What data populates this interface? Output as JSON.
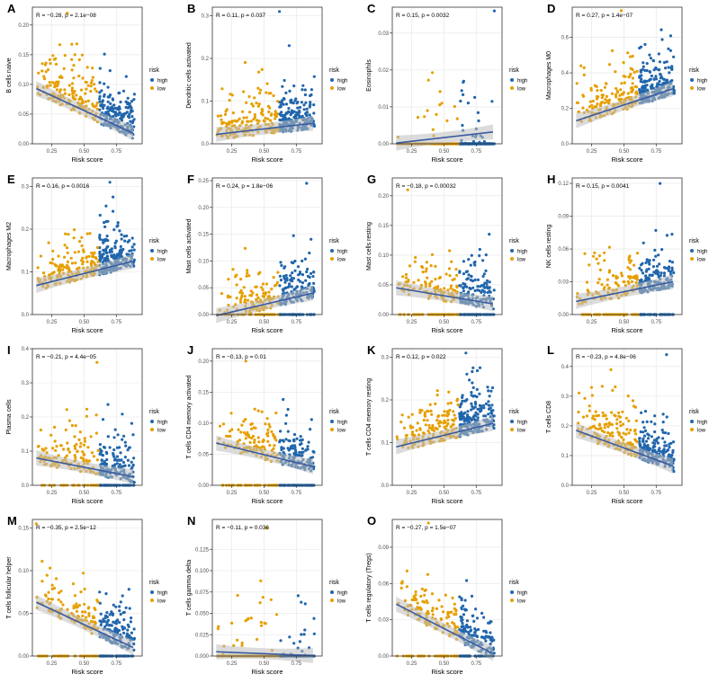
{
  "figure": {
    "x_axis_label": "Risk score",
    "legend_title": "risk",
    "legend_levels": [
      "high",
      "low"
    ],
    "colors": {
      "high": "#2166ac",
      "low": "#e69f00",
      "fit_line": "#3a5ba0",
      "ci_band": "#bdbdbd",
      "grid": "#ebebeb",
      "panel_border": "#333333"
    }
  },
  "chart_data": [
    {
      "type": "scatter",
      "panel": "A",
      "ylabel": "B cells naive",
      "annotation": "R = −0.28, p = 2.1e−08",
      "r": -0.28,
      "xlim": [
        0.1,
        0.95
      ],
      "ylim": [
        0,
        0.23
      ],
      "xticks": [
        0.25,
        0.5,
        0.75
      ],
      "xtick_labels": [
        "0.25",
        "0.50",
        "0.75"
      ],
      "yticks": [
        0.0,
        0.05,
        0.1,
        0.15,
        0.2
      ],
      "ytick_labels": [
        "0.00",
        "0.05",
        "0.10",
        "0.15",
        "0.20"
      ],
      "fit": {
        "x": [
          0.13,
          0.88
        ],
        "y": [
          0.093,
          0.018
        ]
      },
      "n_points": 360,
      "max_point": {
        "x": 0.37,
        "y": 0.22
      }
    },
    {
      "type": "scatter",
      "panel": "B",
      "ylabel": "Dendritic cells activated",
      "annotation": "R = 0.11, p = 0.037",
      "r": 0.11,
      "xlim": [
        0.1,
        0.95
      ],
      "ylim": [
        0,
        0.32
      ],
      "xticks": [
        0.25,
        0.5,
        0.75
      ],
      "xtick_labels": [
        "0.25",
        "0.50",
        "0.75"
      ],
      "yticks": [
        0.0,
        0.1,
        0.2,
        0.3
      ],
      "ytick_labels": [
        "0.0",
        "0.1",
        "0.2",
        "0.3"
      ],
      "fit": {
        "x": [
          0.13,
          0.88
        ],
        "y": [
          0.022,
          0.048
        ]
      },
      "n_points": 360,
      "max_point": {
        "x": 0.62,
        "y": 0.31
      }
    },
    {
      "type": "scatter",
      "panel": "C",
      "ylabel": "Eosinophils",
      "annotation": "R = 0.15, p = 0.0032",
      "r": 0.15,
      "xlim": [
        0.1,
        0.95
      ],
      "ylim": [
        0,
        0.037
      ],
      "xticks": [
        0.25,
        0.5,
        0.75
      ],
      "xtick_labels": [
        "0.25",
        "0.50",
        "0.75"
      ],
      "yticks": [
        0.0,
        0.01,
        0.02,
        0.03
      ],
      "ytick_labels": [
        "0.00",
        "0.01",
        "0.02",
        "0.03"
      ],
      "fit": {
        "x": [
          0.13,
          0.88
        ],
        "y": [
          0.0002,
          0.0032
        ]
      },
      "n_points": 360,
      "max_point": {
        "x": 0.89,
        "y": 0.036
      }
    },
    {
      "type": "scatter",
      "panel": "D",
      "ylabel": "Macrophages M0",
      "annotation": "R = 0.27, p = 1.4e−07",
      "r": 0.27,
      "xlim": [
        0.1,
        0.95
      ],
      "ylim": [
        0,
        0.77
      ],
      "xticks": [
        0.25,
        0.5,
        0.75
      ],
      "xtick_labels": [
        "0.25",
        "0.50",
        "0.75"
      ],
      "yticks": [
        0.0,
        0.2,
        0.4,
        0.6
      ],
      "ytick_labels": [
        "0.0",
        "0.2",
        "0.4",
        "0.6"
      ],
      "fit": {
        "x": [
          0.13,
          0.88
        ],
        "y": [
          0.13,
          0.31
        ]
      },
      "n_points": 360,
      "max_point": {
        "x": 0.48,
        "y": 0.75
      }
    },
    {
      "type": "scatter",
      "panel": "E",
      "ylabel": "Macrophages M2",
      "annotation": "R = 0.16, p = 0.0016",
      "r": 0.16,
      "xlim": [
        0.1,
        0.95
      ],
      "ylim": [
        0,
        0.32
      ],
      "xticks": [
        0.25,
        0.5,
        0.75
      ],
      "xtick_labels": [
        "0.25",
        "0.50",
        "0.75"
      ],
      "yticks": [
        0.0,
        0.1,
        0.2,
        0.3
      ],
      "ytick_labels": [
        "0.0",
        "0.1",
        "0.2",
        "0.3"
      ],
      "fit": {
        "x": [
          0.13,
          0.88
        ],
        "y": [
          0.068,
          0.125
        ]
      },
      "n_points": 360,
      "max_point": {
        "x": 0.7,
        "y": 0.31
      }
    },
    {
      "type": "scatter",
      "panel": "F",
      "ylabel": "Mast cells activated",
      "annotation": "R = 0.24, p = 1.8e−06",
      "r": 0.24,
      "xlim": [
        0.1,
        0.95
      ],
      "ylim": [
        0,
        0.255
      ],
      "xticks": [
        0.25,
        0.5,
        0.75
      ],
      "xtick_labels": [
        "0.25",
        "0.50",
        "0.75"
      ],
      "yticks": [
        0.0,
        0.05,
        0.1,
        0.15,
        0.2,
        0.25
      ],
      "ytick_labels": [
        "0.00",
        "0.05",
        "0.10",
        "0.15",
        "0.20",
        "0.25"
      ],
      "fit": {
        "x": [
          0.13,
          0.88
        ],
        "y": [
          -0.002,
          0.04
        ]
      },
      "n_points": 360,
      "max_point": {
        "x": 0.83,
        "y": 0.245
      }
    },
    {
      "type": "scatter",
      "panel": "G",
      "ylabel": "Mast cells resting",
      "annotation": "R = −0.18, p = 0.00032",
      "r": -0.18,
      "xlim": [
        0.1,
        0.95
      ],
      "ylim": [
        0,
        0.23
      ],
      "xticks": [
        0.25,
        0.5,
        0.75
      ],
      "xtick_labels": [
        "0.25",
        "0.50",
        "0.75"
      ],
      "yticks": [
        0.0,
        0.05,
        0.1,
        0.15,
        0.2
      ],
      "ytick_labels": [
        "0.00",
        "0.05",
        "0.10",
        "0.15",
        "0.20"
      ],
      "fit": {
        "x": [
          0.13,
          0.88
        ],
        "y": [
          0.045,
          0.018
        ]
      },
      "n_points": 360,
      "max_point": {
        "x": 0.22,
        "y": 0.21
      }
    },
    {
      "type": "scatter",
      "panel": "H",
      "ylabel": "NK cells resting",
      "annotation": "R = 0.15, p = 0.0041",
      "r": 0.15,
      "xlim": [
        0.1,
        0.95
      ],
      "ylim": [
        0,
        0.125
      ],
      "xticks": [
        0.25,
        0.5,
        0.75
      ],
      "xtick_labels": [
        "0.25",
        "0.50",
        "0.75"
      ],
      "yticks": [
        0.0,
        0.03,
        0.06,
        0.09,
        0.12
      ],
      "ytick_labels": [
        "0.00",
        "0.03",
        "0.06",
        "0.09",
        "0.12"
      ],
      "fit": {
        "x": [
          0.13,
          0.88
        ],
        "y": [
          0.012,
          0.03
        ]
      },
      "n_points": 360,
      "max_point": {
        "x": 0.78,
        "y": 0.12
      }
    },
    {
      "type": "scatter",
      "panel": "I",
      "ylabel": "Plasma cells",
      "annotation": "R = −0.21, p = 4.4e−05",
      "r": -0.21,
      "xlim": [
        0.1,
        0.95
      ],
      "ylim": [
        0,
        0.4
      ],
      "xticks": [
        0.25,
        0.5,
        0.75
      ],
      "xtick_labels": [
        "0.25",
        "0.50",
        "0.75"
      ],
      "yticks": [
        0.0,
        0.1,
        0.2,
        0.3,
        0.4
      ],
      "ytick_labels": [
        "0.0",
        "0.1",
        "0.2",
        "0.3",
        "0.4"
      ],
      "fit": {
        "x": [
          0.13,
          0.88
        ],
        "y": [
          0.08,
          0.025
        ]
      },
      "n_points": 360,
      "max_point": {
        "x": 0.6,
        "y": 0.36
      }
    },
    {
      "type": "scatter",
      "panel": "J",
      "ylabel": "T cells CD4 memory activated",
      "annotation": "R = −0.13, p = 0.01",
      "r": -0.13,
      "xlim": [
        0.1,
        0.95
      ],
      "ylim": [
        0,
        0.22
      ],
      "xticks": [
        0.25,
        0.5,
        0.75
      ],
      "xtick_labels": [
        "0.25",
        "0.50",
        "0.75"
      ],
      "yticks": [
        0.0,
        0.05,
        0.1,
        0.15,
        0.2
      ],
      "ytick_labels": [
        "0.00",
        "0.05",
        "0.10",
        "0.15",
        "0.20"
      ],
      "fit": {
        "x": [
          0.13,
          0.88
        ],
        "y": [
          0.068,
          0.03
        ]
      },
      "n_points": 360,
      "max_point": {
        "x": 0.36,
        "y": 0.2
      }
    },
    {
      "type": "scatter",
      "panel": "K",
      "ylabel": "T cells CD4 memory resting",
      "annotation": "R = 0.12, p = 0.022",
      "r": 0.12,
      "xlim": [
        0.1,
        0.95
      ],
      "ylim": [
        0,
        0.32
      ],
      "xticks": [
        0.25,
        0.5,
        0.75
      ],
      "xtick_labels": [
        "0.25",
        "0.50",
        "0.75"
      ],
      "yticks": [
        0.0,
        0.1,
        0.2,
        0.3
      ],
      "ytick_labels": [
        "0.0",
        "0.1",
        "0.2",
        "0.3"
      ],
      "fit": {
        "x": [
          0.13,
          0.88
        ],
        "y": [
          0.09,
          0.145
        ]
      },
      "n_points": 360,
      "max_point": {
        "x": 0.67,
        "y": 0.31
      }
    },
    {
      "type": "scatter",
      "panel": "L",
      "ylabel": "T cells CD8",
      "annotation": "R = −0.23, p = 4.8e−06",
      "r": -0.23,
      "xlim": [
        0.1,
        0.95
      ],
      "ylim": [
        0,
        0.46
      ],
      "xticks": [
        0.25,
        0.5,
        0.75
      ],
      "xtick_labels": [
        "0.25",
        "0.50",
        "0.75"
      ],
      "yticks": [
        0.0,
        0.1,
        0.2,
        0.3,
        0.4
      ],
      "ytick_labels": [
        "0.0",
        "0.1",
        "0.2",
        "0.3",
        "0.4"
      ],
      "fit": {
        "x": [
          0.13,
          0.88
        ],
        "y": [
          0.185,
          0.065
        ]
      },
      "n_points": 360,
      "max_point": {
        "x": 0.83,
        "y": 0.44
      }
    },
    {
      "type": "scatter",
      "panel": "M",
      "ylabel": "T cells follicular helper",
      "annotation": "R = −0.35, p = 2.5e−12",
      "r": -0.35,
      "xlim": [
        0.1,
        0.95
      ],
      "ylim": [
        0,
        0.16
      ],
      "xticks": [
        0.25,
        0.5,
        0.75
      ],
      "xtick_labels": [
        "0.25",
        "0.50",
        "0.75"
      ],
      "yticks": [
        0.0,
        0.05,
        0.1,
        0.15
      ],
      "ytick_labels": [
        "0.00",
        "0.05",
        "0.10",
        "0.15"
      ],
      "fit": {
        "x": [
          0.13,
          0.88
        ],
        "y": [
          0.063,
          0.01
        ]
      },
      "n_points": 360,
      "max_point": {
        "x": 0.13,
        "y": 0.155
      }
    },
    {
      "type": "scatter",
      "panel": "N",
      "ylabel": "T cells gamma delta",
      "annotation": "R = −0.11, p = 0.036",
      "r": -0.11,
      "xlim": [
        0.1,
        0.95
      ],
      "ylim": [
        0,
        0.16
      ],
      "xticks": [
        0.25,
        0.5,
        0.75
      ],
      "xtick_labels": [
        "0.25",
        "0.50",
        "0.75"
      ],
      "yticks": [
        0.0,
        0.025,
        0.05,
        0.075,
        0.1,
        0.125
      ],
      "ytick_labels": [
        "0.000",
        "0.025",
        "0.050",
        "0.075",
        "0.100",
        "0.125"
      ],
      "fit": {
        "x": [
          0.13,
          0.88
        ],
        "y": [
          0.005,
          0.0005
        ]
      },
      "n_points": 360,
      "max_point": {
        "x": 0.52,
        "y": 0.15
      }
    },
    {
      "type": "scatter",
      "panel": "O",
      "ylabel": "T cells regulatory (Tregs)",
      "annotation": "R = −0.27, p = 1.5e−07",
      "r": -0.27,
      "xlim": [
        0.1,
        0.95
      ],
      "ylim": [
        0,
        0.113
      ],
      "xticks": [
        0.25,
        0.5,
        0.75
      ],
      "xtick_labels": [
        "0.25",
        "0.50",
        "0.75"
      ],
      "yticks": [
        0.0,
        0.03,
        0.06,
        0.09
      ],
      "ytick_labels": [
        "0.00",
        "0.03",
        "0.06",
        "0.09"
      ],
      "fit": {
        "x": [
          0.13,
          0.88
        ],
        "y": [
          0.043,
          0.002
        ]
      },
      "n_points": 360,
      "max_point": {
        "x": 0.38,
        "y": 0.11
      }
    }
  ]
}
